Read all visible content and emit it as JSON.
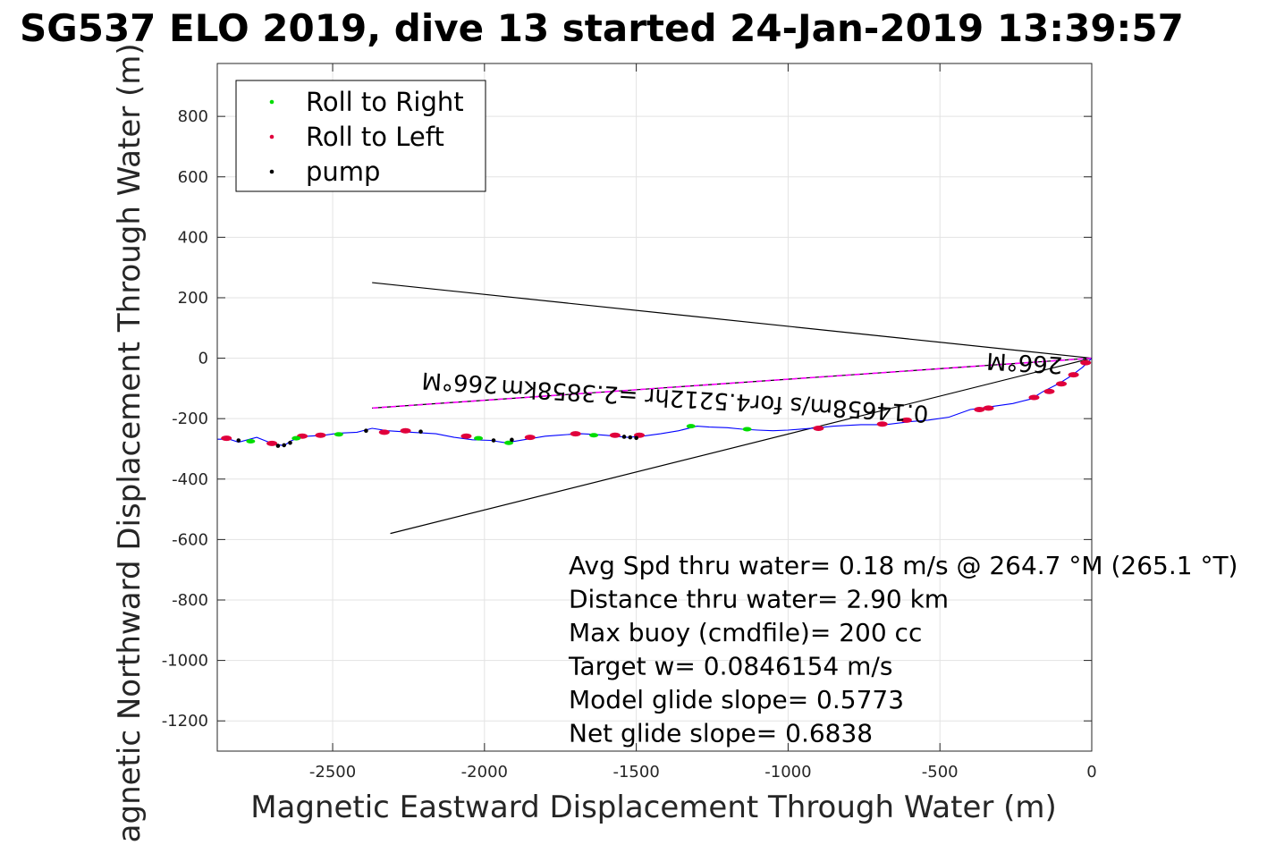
{
  "chart_data": {
    "type": "line",
    "title": "SG537 ELO 2019, dive 13 started 24-Jan-2019 13:39:57",
    "xlabel": "Magnetic Eastward Displacement Through Water (m)",
    "ylabel": "Magnetic Northward Displacement Through Water (m)",
    "xlim": [
      -2880,
      0
    ],
    "ylim": [
      -1300,
      975
    ],
    "xticks": [
      -2500,
      -2000,
      -1500,
      -1000,
      -500,
      0
    ],
    "yticks": [
      -1200,
      -1000,
      -800,
      -600,
      -400,
      -200,
      0,
      200,
      400,
      600,
      800
    ],
    "grid": true,
    "legend_position": "top-left",
    "legend": [
      "Roll to Right",
      "Roll to Left",
      "pump"
    ],
    "colors": {
      "track": "#0000ff",
      "roll_right": "#00dd00",
      "roll_left": "#e0003c",
      "pump": "#000000",
      "heading_line": "#ff00ff",
      "guide": "#000000"
    },
    "series": [
      {
        "name": "track",
        "x": [
          0,
          -30,
          -70,
          -110,
          -160,
          -200,
          -260,
          -330,
          -400,
          -470,
          -540,
          -600,
          -680,
          -760,
          -850,
          -900,
          -1000,
          -1050,
          -1100,
          -1150,
          -1200,
          -1260,
          -1300,
          -1360,
          -1420,
          -1480,
          -1530,
          -1600,
          -1640,
          -1680,
          -1720,
          -1760,
          -1800,
          -1860,
          -1930,
          -1980,
          -2040,
          -2100,
          -2160,
          -2240,
          -2320,
          -2370,
          -2420,
          -2480,
          -2530,
          -2580,
          -2610,
          -2640,
          -2660,
          -2700,
          -2750,
          -2780,
          -2810,
          -2840,
          -2880
        ],
        "y": [
          0,
          -30,
          -60,
          -85,
          -110,
          -135,
          -150,
          -160,
          -170,
          -195,
          -205,
          -210,
          -220,
          -220,
          -225,
          -230,
          -238,
          -240,
          -238,
          -235,
          -230,
          -228,
          -225,
          -240,
          -250,
          -258,
          -262,
          -255,
          -252,
          -250,
          -252,
          -255,
          -258,
          -268,
          -280,
          -272,
          -270,
          -262,
          -250,
          -245,
          -240,
          -232,
          -245,
          -248,
          -255,
          -258,
          -262,
          -275,
          -290,
          -282,
          -262,
          -270,
          -278,
          -268,
          -268
        ]
      }
    ],
    "roll_right": [
      [
        -1320,
        -225
      ],
      [
        -1135,
        -235
      ],
      [
        -1640,
        -255
      ],
      [
        -1920,
        -280
      ],
      [
        -2020,
        -265
      ],
      [
        -2480,
        -252
      ],
      [
        -2620,
        -265
      ],
      [
        -2770,
        -275
      ]
    ],
    "roll_left": [
      [
        -20,
        -15
      ],
      [
        -60,
        -55
      ],
      [
        -100,
        -85
      ],
      [
        -140,
        -110
      ],
      [
        -190,
        -130
      ],
      [
        -340,
        -165
      ],
      [
        -370,
        -170
      ],
      [
        -610,
        -205
      ],
      [
        -690,
        -218
      ],
      [
        -900,
        -232
      ],
      [
        -1490,
        -255
      ],
      [
        -1570,
        -255
      ],
      [
        -1700,
        -250
      ],
      [
        -1850,
        -262
      ],
      [
        -2060,
        -258
      ],
      [
        -2260,
        -240
      ],
      [
        -2330,
        -245
      ],
      [
        -2540,
        -255
      ],
      [
        -2600,
        -258
      ],
      [
        -2700,
        -282
      ],
      [
        -2850,
        -265
      ]
    ],
    "pump": [
      [
        -1540,
        -260
      ],
      [
        -1520,
        -262
      ],
      [
        -1500,
        -264
      ],
      [
        -1910,
        -270
      ],
      [
        -1970,
        -272
      ],
      [
        -2210,
        -243
      ],
      [
        -2390,
        -240
      ],
      [
        -2640,
        -280
      ],
      [
        -2660,
        -288
      ],
      [
        -2680,
        -290
      ],
      [
        -2810,
        -272
      ]
    ],
    "heading_line": {
      "from": [
        0,
        0
      ],
      "to": [
        -2370,
        -165
      ]
    },
    "guide_lines": [
      {
        "from": [
          0,
          0
        ],
        "to": [
          -2370,
          250
        ]
      },
      {
        "from": [
          0,
          0
        ],
        "to": [
          -2310,
          -580
        ]
      }
    ],
    "heading_labels": [
      {
        "text": "266°M",
        "x": -220,
        "y": 10,
        "rotation": 183.5
      },
      {
        "text": "266°M",
        "x": -2080,
        "y": -55,
        "rotation": 183.5
      },
      {
        "text": "0.14658m/s for4.5212hr =2.3858km",
        "x": -1240,
        "y": -115,
        "rotation": 183.5
      }
    ],
    "annotations": [
      "Avg Spd thru water=  0.18 m/s @ 264.7 °M (265.1 °T)",
      "Distance thru water=  2.90 km",
      "Max buoy (cmdfile)= 200 cc",
      "Target w= 0.0846154 m/s",
      "Model glide slope= 0.5773",
      "Net glide slope= 0.6838"
    ]
  }
}
